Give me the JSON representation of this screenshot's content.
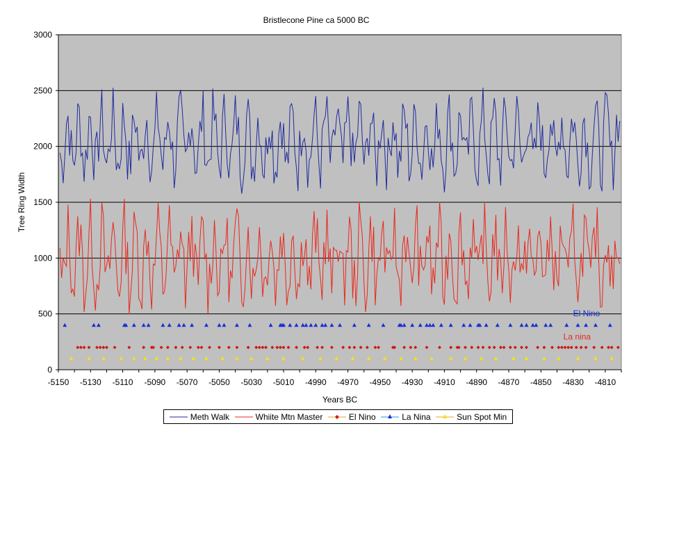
{
  "chart_data": {
    "type": "line",
    "title": "Bristlecone Pine ca 5000 BC",
    "xlabel": "Years BC",
    "ylabel": "Tree Ring Width",
    "xlim": [
      -5150,
      -4800
    ],
    "ylim": [
      0,
      3000
    ],
    "x_ticks": [
      -5150,
      -5130,
      -5110,
      -5090,
      -5070,
      -5050,
      -5030,
      -5010,
      -4990,
      -4970,
      -4950,
      -4930,
      -4910,
      -4890,
      -4870,
      -4850,
      -4830,
      -4810
    ],
    "y_ticks": [
      0,
      500,
      1000,
      1500,
      2000,
      2500,
      3000
    ],
    "grid": "horizontal",
    "background": "#c0c0c0",
    "series": [
      {
        "name": "Meth Walk",
        "kind": "line",
        "color": "#1f2a9c",
        "base": 2050,
        "amp": 380,
        "seed": 7
      },
      {
        "name": "Whiite Mtn Master",
        "kind": "line",
        "color": "#e8281c",
        "base": 1000,
        "amp": 420,
        "seed": 13
      },
      {
        "name": "El Nino",
        "kind": "marker",
        "marker": "diamond",
        "color": "#cc1b12",
        "level": 200,
        "years": [
          -5138,
          -5136,
          -5134,
          -5131,
          -5126,
          -5124,
          -5122,
          -5120,
          -5115,
          -5106,
          -5097,
          -5092,
          -5091,
          -5086,
          -5082,
          -5077,
          -5073,
          -5068,
          -5063,
          -5061,
          -5056,
          -5050,
          -5044,
          -5039,
          -5032,
          -5027,
          -5025,
          -5023,
          -5021,
          -5017,
          -5014,
          -5012,
          -5010,
          -5007,
          -5002,
          -4997,
          -4995,
          -4989,
          -4986,
          -4980,
          -4973,
          -4969,
          -4966,
          -4962,
          -4958,
          -4953,
          -4951,
          -4942,
          -4941,
          -4935,
          -4931,
          -4928,
          -4921,
          -4913,
          -4906,
          -4902,
          -4901,
          -4897,
          -4893,
          -4889,
          -4886,
          -4882,
          -4879,
          -4875,
          -4873,
          -4869,
          -4866,
          -4862,
          -4859,
          -4852,
          -4848,
          -4843,
          -4839,
          -4837,
          -4835,
          -4833,
          -4831,
          -4828,
          -4825,
          -4822,
          -4817,
          -4812,
          -4808,
          -4806,
          -4802
        ]
      },
      {
        "name": "La Nina",
        "kind": "marker",
        "marker": "triangle",
        "color": "#1830d8",
        "level": 400,
        "years": [
          -5146,
          -5128,
          -5125,
          -5109,
          -5108,
          -5103,
          -5097,
          -5094,
          -5085,
          -5081,
          -5075,
          -5072,
          -5067,
          -5058,
          -5050,
          -5047,
          -5039,
          -5031,
          -5018,
          -5012,
          -5011,
          -5010,
          -5006,
          -5002,
          -4998,
          -4996,
          -4993,
          -4990,
          -4986,
          -4984,
          -4980,
          -4975,
          -4966,
          -4957,
          -4948,
          -4938,
          -4937,
          -4935,
          -4930,
          -4925,
          -4921,
          -4919,
          -4917,
          -4912,
          -4906,
          -4898,
          -4894,
          -4889,
          -4888,
          -4884,
          -4877,
          -4869,
          -4862,
          -4859,
          -4855,
          -4853,
          -4847,
          -4844,
          -4834,
          -4827,
          -4822,
          -4816,
          -4807
        ]
      },
      {
        "name": "Sun Spot Min",
        "kind": "marker",
        "marker": "triangle",
        "color": "#f0e020",
        "level": 100,
        "years": [
          -5142,
          -5131,
          -5122,
          -5111,
          -5103,
          -5096,
          -5089,
          -5082,
          -5074,
          -5066,
          -5058,
          -5048,
          -5039,
          -5030,
          -5020,
          -5010,
          -4998,
          -4987,
          -4977,
          -4967,
          -4957,
          -4947,
          -4937,
          -4928,
          -4918,
          -4906,
          -4897,
          -4887,
          -4878,
          -4867,
          -4859,
          -4848,
          -4839,
          -4827,
          -4816,
          -4806
        ]
      }
    ],
    "annotations": [
      {
        "text": "El Nino",
        "x": -4830,
        "y": 480,
        "color": "#1830d8"
      },
      {
        "text": "La nina",
        "x": -4836,
        "y": 270,
        "color": "#e8281c"
      }
    ],
    "legend_position": "bottom"
  }
}
